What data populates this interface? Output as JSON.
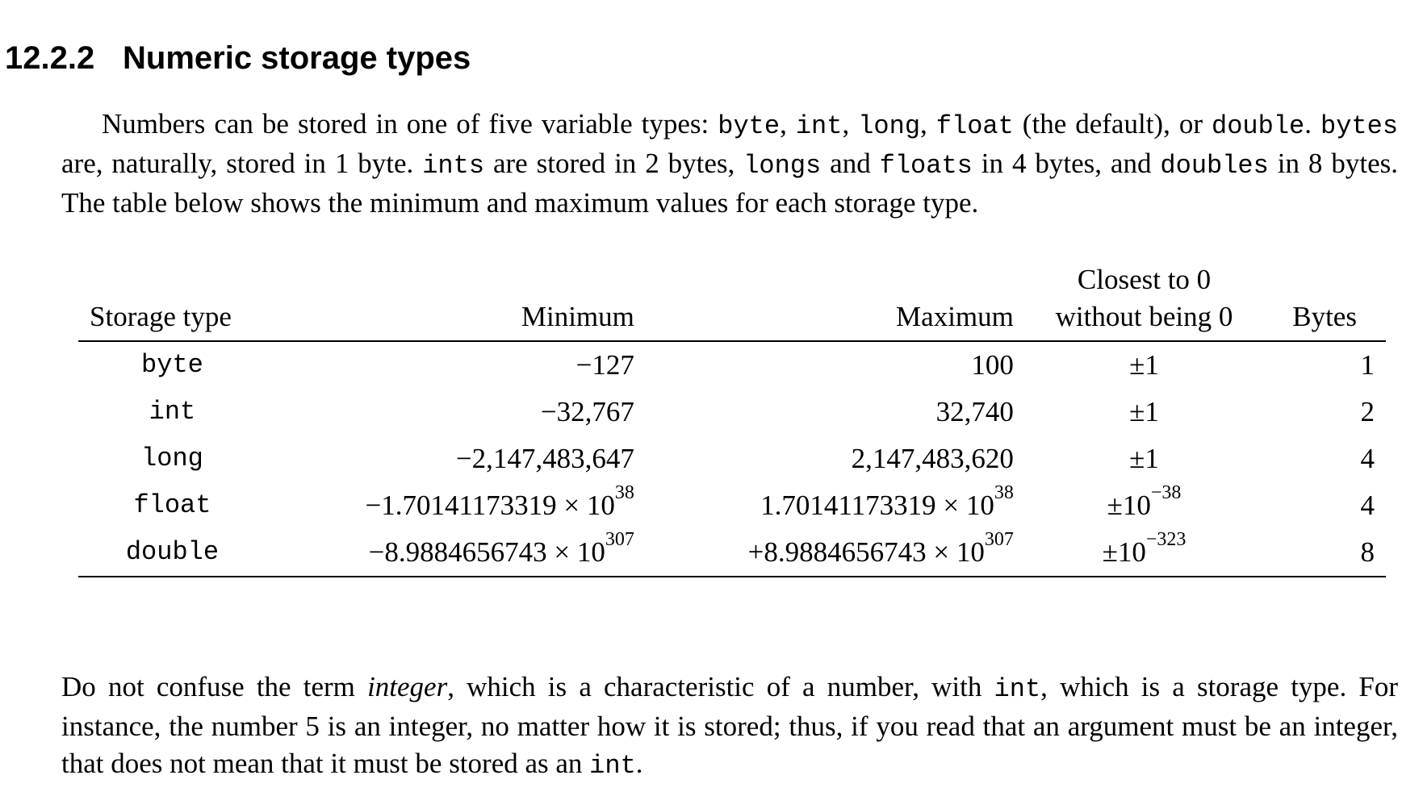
{
  "section": {
    "number": "12.2.2",
    "title": "Numeric storage types"
  },
  "para1": {
    "s1": "Numbers can be stored in one of five variable types: ",
    "t_byte": "byte",
    "s2": ", ",
    "t_int": "int",
    "s3": ", ",
    "t_long": "long",
    "s4": ", ",
    "t_float": "float",
    "s5": " (the default), or ",
    "t_double": "double",
    "s6": ". ",
    "t_bytes": "bytes",
    "s7": " are, naturally, stored in 1 byte. ",
    "t_ints": "ints",
    "s8": " are stored in 2 bytes, ",
    "t_longs": "longs",
    "s9": " and ",
    "t_floats": "floats",
    "s10": " in 4 bytes, and ",
    "t_doubles": "doubles",
    "s11": " in 8 bytes. The table below shows the minimum and maximum values for each storage type."
  },
  "table": {
    "headers": {
      "type": "Storage type",
      "min": "Minimum",
      "max": "Maximum",
      "closest_line1": "Closest to 0",
      "closest_line2": "without being 0",
      "bytes": "Bytes"
    },
    "rows": [
      {
        "type": "byte",
        "min": "−127",
        "min_exp": "",
        "max": "100",
        "max_exp": "",
        "closest": "±1",
        "closest_exp": "",
        "bytes": "1"
      },
      {
        "type": "int",
        "min": "−32,767",
        "min_exp": "",
        "max": "32,740",
        "max_exp": "",
        "closest": "±1",
        "closest_exp": "",
        "bytes": "2"
      },
      {
        "type": "long",
        "min": "−2,147,483,647",
        "min_exp": "",
        "max": "2,147,483,620",
        "max_exp": "",
        "closest": "±1",
        "closest_exp": "",
        "bytes": "4"
      },
      {
        "type": "float",
        "min": "−1.70141173319 × 10",
        "min_exp": "38",
        "max": "1.70141173319 × 10",
        "max_exp": "38",
        "closest": "±10",
        "closest_exp": "−38",
        "bytes": "4"
      },
      {
        "type": "double",
        "min": "−8.9884656743 × 10",
        "min_exp": "307",
        "max": "+8.9884656743 × 10",
        "max_exp": "307",
        "closest": "±10",
        "closest_exp": "−323",
        "bytes": "8"
      }
    ]
  },
  "para2": {
    "s1": "Do not confuse the term ",
    "em": "integer",
    "s2": ", which is a characteristic of a number, with ",
    "t_int": "int",
    "s3": ", which is a storage type. For instance, the number 5 is an integer, no matter how it is stored; thus, if you read that an argument must be an integer, that does not mean that it must be stored as an ",
    "t_int2": "int",
    "s4": "."
  }
}
